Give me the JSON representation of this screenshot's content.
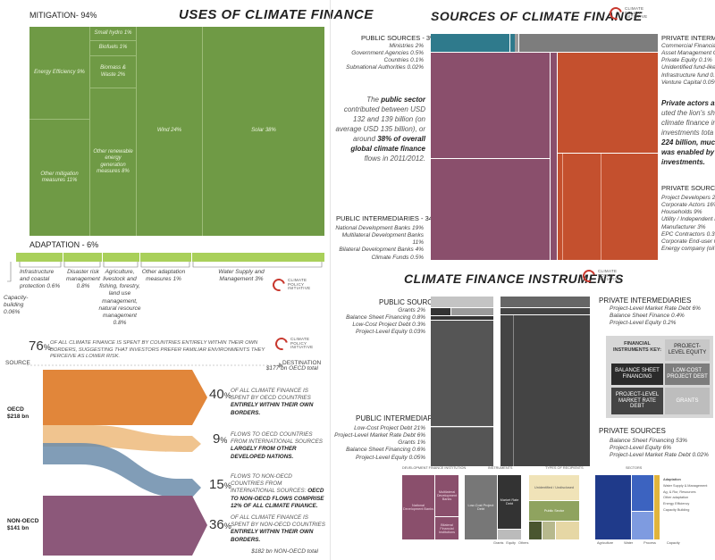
{
  "uses": {
    "title": "USES OF CLIMATE FINANCE",
    "mitigation_label": "MITIGATION- 94%",
    "adaptation_label": "ADAPTATION - 6%",
    "mitigation_cells": {
      "energy_efficiency": "Energy Efficiency 9%",
      "other_mitigation": "Other mitigation measures 11%",
      "small_hydro": "Small hydro 1%",
      "biofuels": "Biofuels 1%",
      "biomass": "Biomass & Waste 2%",
      "other_renewable": "Other renewable energy generation measures 8%",
      "wind": "Wind 24%",
      "solar": "Solar 38%"
    },
    "adaptation_items": {
      "capacity": "Capacity-building 0.06%",
      "infrastructure": "Infrastructure and coastal protection 0.6%",
      "disaster": "Disaster risk management 0.8%",
      "agriculture": "Agriculture, livestock and fishing, forestry, land use management, natural resource management 0.8%",
      "other_adaptation": "Other adaptation measures 1%",
      "water": "Water Supply and Management 3%"
    }
  },
  "flows": {
    "headline_pct": "76",
    "headline_text": "OF ALL CLIMATE FINANCE IS SPENT BY COUNTRIES ENTIRELY WITHIN THEIR OWN BORDERS, SUGGESTING THAT INVESTORS PREFER FAMILIAR ENVIRONMENTS THEY PERCEIVE AS LOWER RISK.",
    "source_label": "SOURCE",
    "destination_label": "DESTINATION",
    "oecd_total": "$177 bn OECD total",
    "non_oecd_total": "$182 bn NON-OECD total",
    "oecd_source": "OECD",
    "oecd_source_value": "$218 bn",
    "non_oecd_source": "NON-OECD",
    "non_oecd_source_value": "$141 bn",
    "items": [
      {
        "pct": "40",
        "text_a": "OF ALL CLIMATE FINANCE IS SPENT BY OECD COUNTRIES ",
        "text_b": "ENTIRELY WITHIN THEIR OWN BORDERS."
      },
      {
        "pct": "9",
        "text_a": "FLOWS TO OECD COUNTRIES FROM INTERNATIONAL SOURCES ",
        "text_b": "LARGELY FROM OTHER DEVELOPED NATIONS."
      },
      {
        "pct": "15",
        "text_a": "FLOWS TO NON-OECD COUNTRIES FROM INTERNATIONAL SOURCES: ",
        "text_b": "OECD TO NON-OECD FLOWS COMPRISE 12% OF ALL CLIMATE FINANCE."
      },
      {
        "pct": "36",
        "text_a": "OF ALL CLIMATE FINANCE IS SPENT BY NON-OECD COUNTRIES ",
        "text_b": "ENTIRELY WITHIN THEIR OWN BORDERS."
      }
    ]
  },
  "sources": {
    "title": "SOURCES OF CLIMATE FINANCE",
    "public_sources_label": "PUBLIC SOURCES - 3%",
    "public_sources_items": [
      "Ministries 2%",
      "Government Agencies 0.5%",
      "Countries 0.1%",
      "Subnational Authorities 0.02%"
    ],
    "narrative_a": "The ",
    "narrative_b": "public sector",
    "narrative_c": " contributed between USD 132 and 139 billion (on average USD 135 billion), or around ",
    "narrative_d": "38% of overall global climate finance",
    "narrative_e": " flows in 2011/2012.",
    "public_intermediaries_label": "PUBLIC INTERMEDIARIES - 34%",
    "public_intermediaries_items": [
      "National Development Banks 19%",
      "Multilateral Development Banks 11%",
      "Bilateral Development Banks 4%",
      "Climate Funds 0.5%"
    ],
    "private_intermediaries_label": "PRIVATE INTERMEDIARIES",
    "private_intermediaries_items": [
      "Commercial Financial Institutions",
      "Asset Management Companies",
      "Private Equity 0.1%",
      "Unidentified fund-like",
      "Infrastructure fund 0.",
      "Venture Capital 0.05%"
    ],
    "private_text_a": "Private actors a",
    "private_text_b": "uted the lion's sh",
    "private_text_c": "climate finance in",
    "private_text_d": "investments tota",
    "private_text_e": "224 billion, muc",
    "private_text_f": "was enabled by",
    "private_text_g": "investments.",
    "private_sources_label": "PRIVATE SOURCES -",
    "private_sources_items": [
      "Project Developers 20%",
      "Corporate Actors 16%",
      "Households 9%",
      "Utility / Independent P",
      "Manufacturer 3%",
      "EPC Contractors 0.3%",
      "Corporate End-user 0.",
      "Energy company (oil &"
    ]
  },
  "instruments": {
    "title": "CLIMATE FINANCE INSTRUMENTS",
    "public_sources_label": "PUBLIC SOURCES",
    "public_sources_items": [
      "Grants 2%",
      "Balance Sheet Financing 0.8%",
      "Low-Cost Project Debt 0.3%",
      "Project-Level Equity 0.03%"
    ],
    "public_intermediaries_label": "PUBLIC INTERMEDIARIES",
    "public_intermediaries_items": [
      "Low-Cost Project Debt 21%",
      "Project-Level Market Rate Debt 6%",
      "Grants 1%",
      "Balance Sheet Financing 0.6%",
      "Project-Level Equity 0.05%"
    ],
    "private_intermediaries_label": "PRIVATE INTERMEDIARIES",
    "private_intermediaries_items": [
      "Project-Level Market Rate Debt 6%",
      "Balance Sheet Finance 0.4%",
      "Project-Level Equity 0.2%"
    ],
    "private_sources_label": "PRIVATE SOURCES",
    "private_sources_items": [
      "Balance Sheet Financing 53%",
      "Project-Level Equity 6%",
      "Project-Level Market Rate Debt 0.02%"
    ],
    "key_title": "FINANCIAL INSTRUMENTS KEY:",
    "key_items": [
      "PROJECT-LEVEL EQUITY",
      "BALANCE SHEET FINANCING",
      "LOW-COST PROJECT DEBT",
      "PROJECT-LEVEL MARKET RATE DEBT",
      "GRANTS"
    ]
  },
  "logo_text": [
    "CLIMATE",
    "POLICY",
    "INITIATIVE"
  ],
  "bottom_thumb": {
    "headers": [
      "DEVELOPMENT FINANCE INSTITUTION",
      "INSTRUMENTS",
      "TYPES OF RECIPIENTS",
      "SECTORS"
    ],
    "dfi_cells": [
      "National Development Banks",
      "Multilateral Development Banks",
      "Bilateral Financial Institutions"
    ],
    "instrument_cells": [
      "Low-Cost Project Debt",
      "Market Rate Debt"
    ],
    "instrument_footer": [
      "Grants",
      "Equity",
      "Others"
    ],
    "recipient_cells": [
      "Unidentified / Undisclosed",
      "Public Sector"
    ],
    "sector_footer": [
      "Agriculture",
      "Water",
      "Process",
      "Capacity"
    ],
    "right_labels": [
      "Adaptation",
      "Water Supply & Management",
      "Ag, & Rur, Resources",
      "Other adaptation",
      "Energy Efficiency",
      "Capacity Building"
    ]
  },
  "chart_data": [
    {
      "type": "treemap",
      "title": "USES OF CLIMATE FINANCE",
      "groups": [
        {
          "name": "MITIGATION",
          "percent": 94,
          "items": [
            {
              "name": "Solar",
              "value": 38
            },
            {
              "name": "Wind",
              "value": 24
            },
            {
              "name": "Other mitigation measures",
              "value": 11
            },
            {
              "name": "Energy Efficiency",
              "value": 9
            },
            {
              "name": "Other renewable energy generation measures",
              "value": 8
            },
            {
              "name": "Biomass & Waste",
              "value": 2
            },
            {
              "name": "Small hydro",
              "value": 1
            },
            {
              "name": "Biofuels",
              "value": 1
            }
          ]
        },
        {
          "name": "ADAPTATION",
          "percent": 6,
          "items": [
            {
              "name": "Water Supply and Management",
              "value": 3
            },
            {
              "name": "Other adaptation measures",
              "value": 1
            },
            {
              "name": "Agriculture, livestock and fishing, forestry, land use management, natural resource management",
              "value": 0.8
            },
            {
              "name": "Disaster risk management",
              "value": 0.8
            },
            {
              "name": "Infrastructure and coastal protection",
              "value": 0.6
            },
            {
              "name": "Capacity-building",
              "value": 0.06
            }
          ]
        }
      ]
    },
    {
      "type": "sankey",
      "sources": [
        {
          "name": "OECD",
          "value_bn": 218
        },
        {
          "name": "NON-OECD",
          "value_bn": 141
        }
      ],
      "destinations": [
        {
          "name": "OECD",
          "value_bn": 177
        },
        {
          "name": "NON-OECD",
          "value_bn": 182
        }
      ],
      "flows_percent": [
        {
          "from": "OECD",
          "to": "OECD",
          "value": 40
        },
        {
          "from": "International",
          "to": "OECD",
          "value": 9
        },
        {
          "from": "International",
          "to": "NON-OECD",
          "value": 15
        },
        {
          "from": "NON-OECD",
          "to": "NON-OECD",
          "value": 36
        }
      ]
    },
    {
      "type": "treemap",
      "title": "SOURCES OF CLIMATE FINANCE",
      "groups": [
        {
          "name": "PUBLIC SOURCES",
          "percent": 3,
          "items": [
            {
              "name": "Ministries",
              "value": 2
            },
            {
              "name": "Government Agencies",
              "value": 0.5
            },
            {
              "name": "Countries",
              "value": 0.1
            },
            {
              "name": "Subnational Authorities",
              "value": 0.02
            }
          ]
        },
        {
          "name": "PUBLIC INTERMEDIARIES",
          "percent": 34,
          "items": [
            {
              "name": "National Development Banks",
              "value": 19
            },
            {
              "name": "Multilateral Development Banks",
              "value": 11
            },
            {
              "name": "Bilateral Development Banks",
              "value": 4
            },
            {
              "name": "Climate Funds",
              "value": 0.5
            }
          ]
        },
        {
          "name": "PRIVATE SOURCES",
          "items": [
            {
              "name": "Project Developers",
              "value": 20
            },
            {
              "name": "Corporate Actors",
              "value": 16
            },
            {
              "name": "Households",
              "value": 9
            },
            {
              "name": "Manufacturer",
              "value": 3
            },
            {
              "name": "EPC Contractors",
              "value": 0.3
            }
          ]
        }
      ]
    },
    {
      "type": "treemap",
      "title": "CLIMATE FINANCE INSTRUMENTS",
      "groups": [
        {
          "name": "PUBLIC SOURCES",
          "items": [
            {
              "name": "Grants",
              "value": 2
            },
            {
              "name": "Balance Sheet Financing",
              "value": 0.8
            },
            {
              "name": "Low-Cost Project Debt",
              "value": 0.3
            },
            {
              "name": "Project-Level Equity",
              "value": 0.03
            }
          ]
        },
        {
          "name": "PUBLIC INTERMEDIARIES",
          "items": [
            {
              "name": "Low-Cost Project Debt",
              "value": 21
            },
            {
              "name": "Project-Level Market Rate Debt",
              "value": 6
            },
            {
              "name": "Grants",
              "value": 1
            },
            {
              "name": "Balance Sheet Financing",
              "value": 0.6
            },
            {
              "name": "Project-Level Equity",
              "value": 0.05
            }
          ]
        },
        {
          "name": "PRIVATE INTERMEDIARIES",
          "items": [
            {
              "name": "Project-Level Market Rate Debt",
              "value": 6
            },
            {
              "name": "Balance Sheet Finance",
              "value": 0.4
            },
            {
              "name": "Project-Level Equity",
              "value": 0.2
            }
          ]
        },
        {
          "name": "PRIVATE SOURCES",
          "items": [
            {
              "name": "Balance Sheet Financing",
              "value": 53
            },
            {
              "name": "Project-Level Equity",
              "value": 6
            },
            {
              "name": "Project-Level Market Rate Debt",
              "value": 0.02
            }
          ]
        }
      ]
    }
  ]
}
